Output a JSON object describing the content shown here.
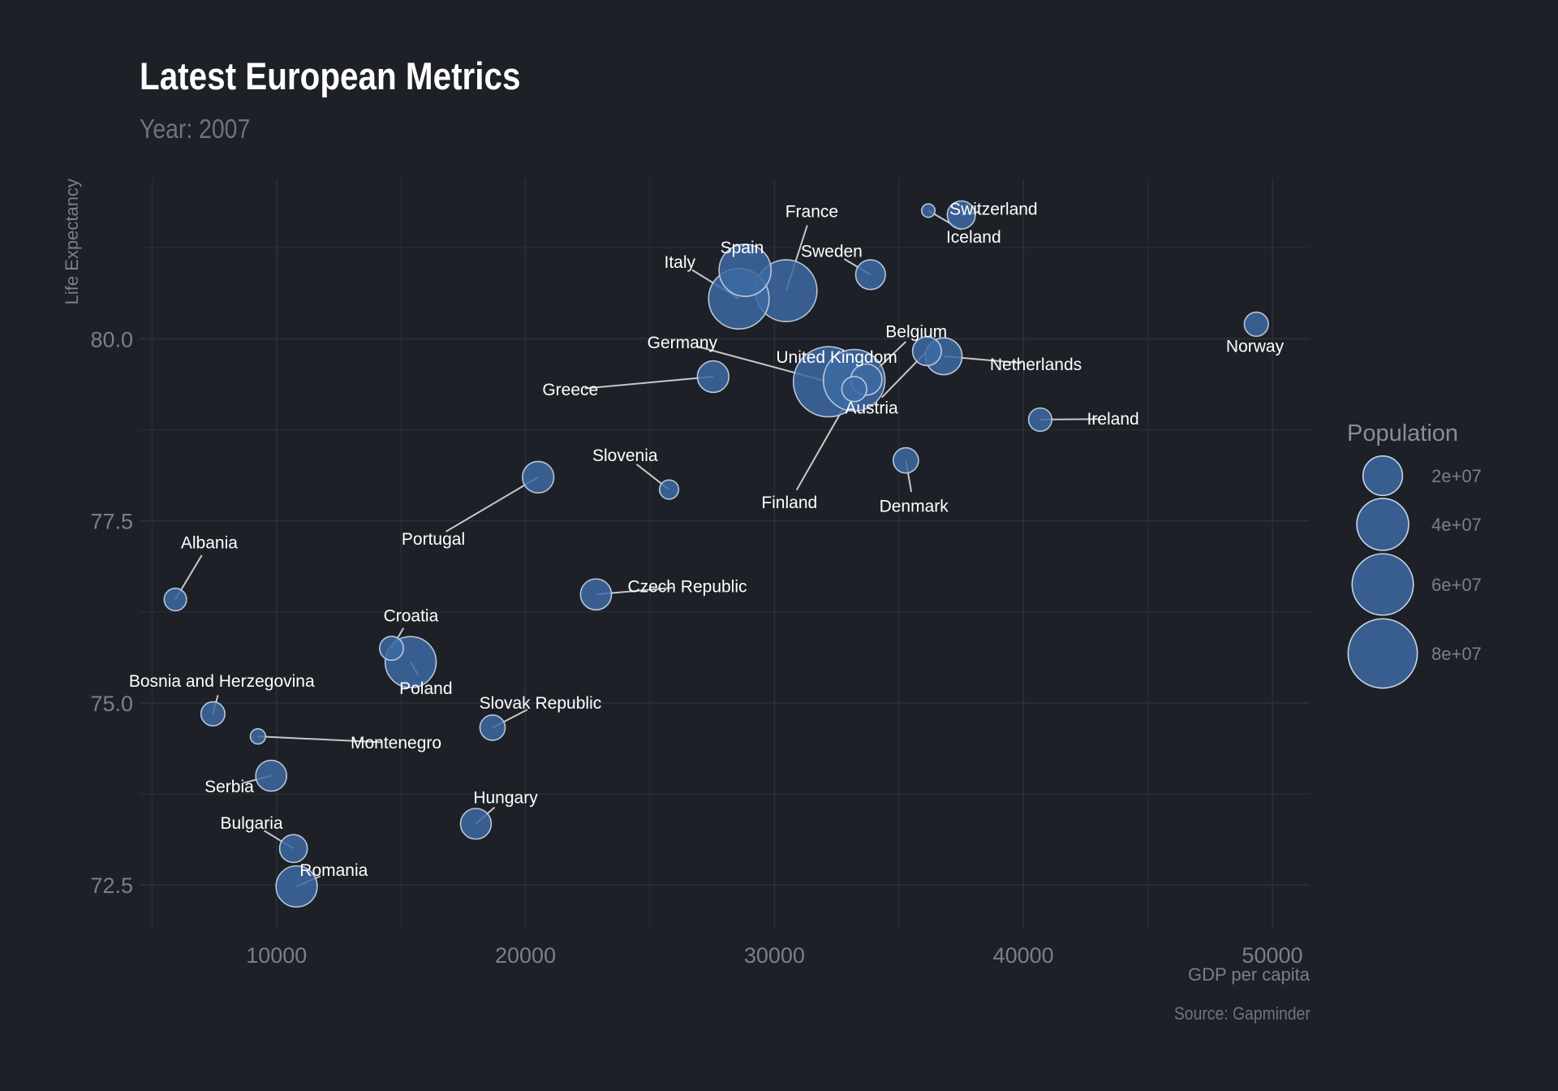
{
  "title": "Latest European Metrics",
  "subtitle": "Year: 2007",
  "caption": "Source: Gapminder",
  "colors": {
    "background": "#1d2027",
    "grid": "#2c3039",
    "bubble_fill": "#3d6aa3",
    "bubble_stroke": "#c9d4e4",
    "connector": "#c8c8c8",
    "text": "#ffffff",
    "muted": "#7b7f87"
  },
  "chart_data": {
    "type": "scatter",
    "title": "Latest European Metrics",
    "subtitle": "Year: 2007",
    "xlabel": "GDP per capita",
    "ylabel": "Life Expectancy",
    "xlim": [
      4500,
      51500
    ],
    "ylim": [
      71.9,
      82.2
    ],
    "xticks": [
      10000,
      20000,
      30000,
      40000,
      50000
    ],
    "xtick_labels": [
      "10000",
      "20000",
      "30000",
      "40000",
      "50000"
    ],
    "yticks": [
      72.5,
      75.0,
      77.5,
      80.0
    ],
    "ytick_labels": [
      "72.5",
      "75.0",
      "77.5",
      "80.0"
    ],
    "grid": true,
    "size_variable": "Population",
    "legend": {
      "title": "Population",
      "position": "right",
      "entries": [
        {
          "label": "2e+07",
          "value": 20000000
        },
        {
          "label": "4e+07",
          "value": 40000000
        },
        {
          "label": "6e+07",
          "value": 60000000
        },
        {
          "label": "8e+07",
          "value": 80000000
        }
      ]
    },
    "points": [
      {
        "label": "Albania",
        "x": 5937,
        "y": 76.42,
        "size": 3600523,
        "label_x": 7300,
        "label_y": 77.2
      },
      {
        "label": "Austria",
        "x": 36126,
        "y": 79.83,
        "size": 8199783,
        "label_x": 33900,
        "label_y": 79.05
      },
      {
        "label": "Belgium",
        "x": 33693,
        "y": 79.44,
        "size": 10392226,
        "label_x": 35700,
        "label_y": 80.1
      },
      {
        "label": "Bosnia and Herzegovina",
        "x": 7446,
        "y": 74.85,
        "size": 4552198,
        "label_x": 7800,
        "label_y": 75.3
      },
      {
        "label": "Bulgaria",
        "x": 10681,
        "y": 73.0,
        "size": 7322858,
        "label_x": 9000,
        "label_y": 73.35
      },
      {
        "label": "Croatia",
        "x": 14619,
        "y": 75.75,
        "size": 4493312,
        "label_x": 15400,
        "label_y": 76.2
      },
      {
        "label": "Czech Republic",
        "x": 22833,
        "y": 76.49,
        "size": 10228744,
        "label_x": 26500,
        "label_y": 76.6
      },
      {
        "label": "Denmark",
        "x": 35278,
        "y": 78.33,
        "size": 5468120,
        "label_x": 35600,
        "label_y": 77.7
      },
      {
        "label": "Finland",
        "x": 33207,
        "y": 79.31,
        "size": 5238460,
        "label_x": 30600,
        "label_y": 77.75
      },
      {
        "label": "France",
        "x": 30470,
        "y": 80.66,
        "size": 61083916,
        "label_x": 31500,
        "label_y": 81.75
      },
      {
        "label": "Germany",
        "x": 32170,
        "y": 79.41,
        "size": 82400996,
        "label_x": 26300,
        "label_y": 79.95
      },
      {
        "label": "Greece",
        "x": 27538,
        "y": 79.48,
        "size": 10706290,
        "label_x": 21800,
        "label_y": 79.3
      },
      {
        "label": "Hungary",
        "x": 18009,
        "y": 73.34,
        "size": 9956108,
        "label_x": 19200,
        "label_y": 73.7
      },
      {
        "label": "Iceland",
        "x": 36181,
        "y": 81.76,
        "size": 301931,
        "label_x": 38000,
        "label_y": 81.4
      },
      {
        "label": "Ireland",
        "x": 40676,
        "y": 78.89,
        "size": 4109086,
        "label_x": 43600,
        "label_y": 78.9
      },
      {
        "label": "Italy",
        "x": 28570,
        "y": 80.55,
        "size": 58147733,
        "label_x": 26200,
        "label_y": 81.05
      },
      {
        "label": "Montenegro",
        "x": 9254,
        "y": 74.54,
        "size": 684736,
        "label_x": 14800,
        "label_y": 74.45
      },
      {
        "label": "Netherlands",
        "x": 36798,
        "y": 79.76,
        "size": 16570613,
        "label_x": 40500,
        "label_y": 79.65
      },
      {
        "label": "Norway",
        "x": 49357,
        "y": 80.2,
        "size": 4627926,
        "label_x": 49300,
        "label_y": 79.9
      },
      {
        "label": "Poland",
        "x": 15390,
        "y": 75.56,
        "size": 38518241,
        "label_x": 16000,
        "label_y": 75.2
      },
      {
        "label": "Portugal",
        "x": 20510,
        "y": 78.1,
        "size": 10642836,
        "label_x": 16300,
        "label_y": 77.25
      },
      {
        "label": "Romania",
        "x": 10808,
        "y": 72.48,
        "size": 22276056,
        "label_x": 12300,
        "label_y": 72.7
      },
      {
        "label": "Serbia",
        "x": 9787,
        "y": 74.0,
        "size": 10150265,
        "label_x": 8100,
        "label_y": 73.85
      },
      {
        "label": "Slovak Republic",
        "x": 18678,
        "y": 74.66,
        "size": 5447502,
        "label_x": 20600,
        "label_y": 75.0
      },
      {
        "label": "Slovenia",
        "x": 25768,
        "y": 77.93,
        "size": 2009245,
        "label_x": 24000,
        "label_y": 78.4
      },
      {
        "label": "Spain",
        "x": 28821,
        "y": 80.94,
        "size": 40448191,
        "label_x": 28700,
        "label_y": 81.25
      },
      {
        "label": "Sweden",
        "x": 33860,
        "y": 80.88,
        "size": 9031088,
        "label_x": 32300,
        "label_y": 81.2
      },
      {
        "label": "Switzerland",
        "x": 37506,
        "y": 81.7,
        "size": 7554661,
        "label_x": 38800,
        "label_y": 81.78
      },
      {
        "label": "United Kingdom",
        "x": 33203,
        "y": 79.43,
        "size": 60776238,
        "label_x": 32500,
        "label_y": 79.75
      }
    ]
  }
}
